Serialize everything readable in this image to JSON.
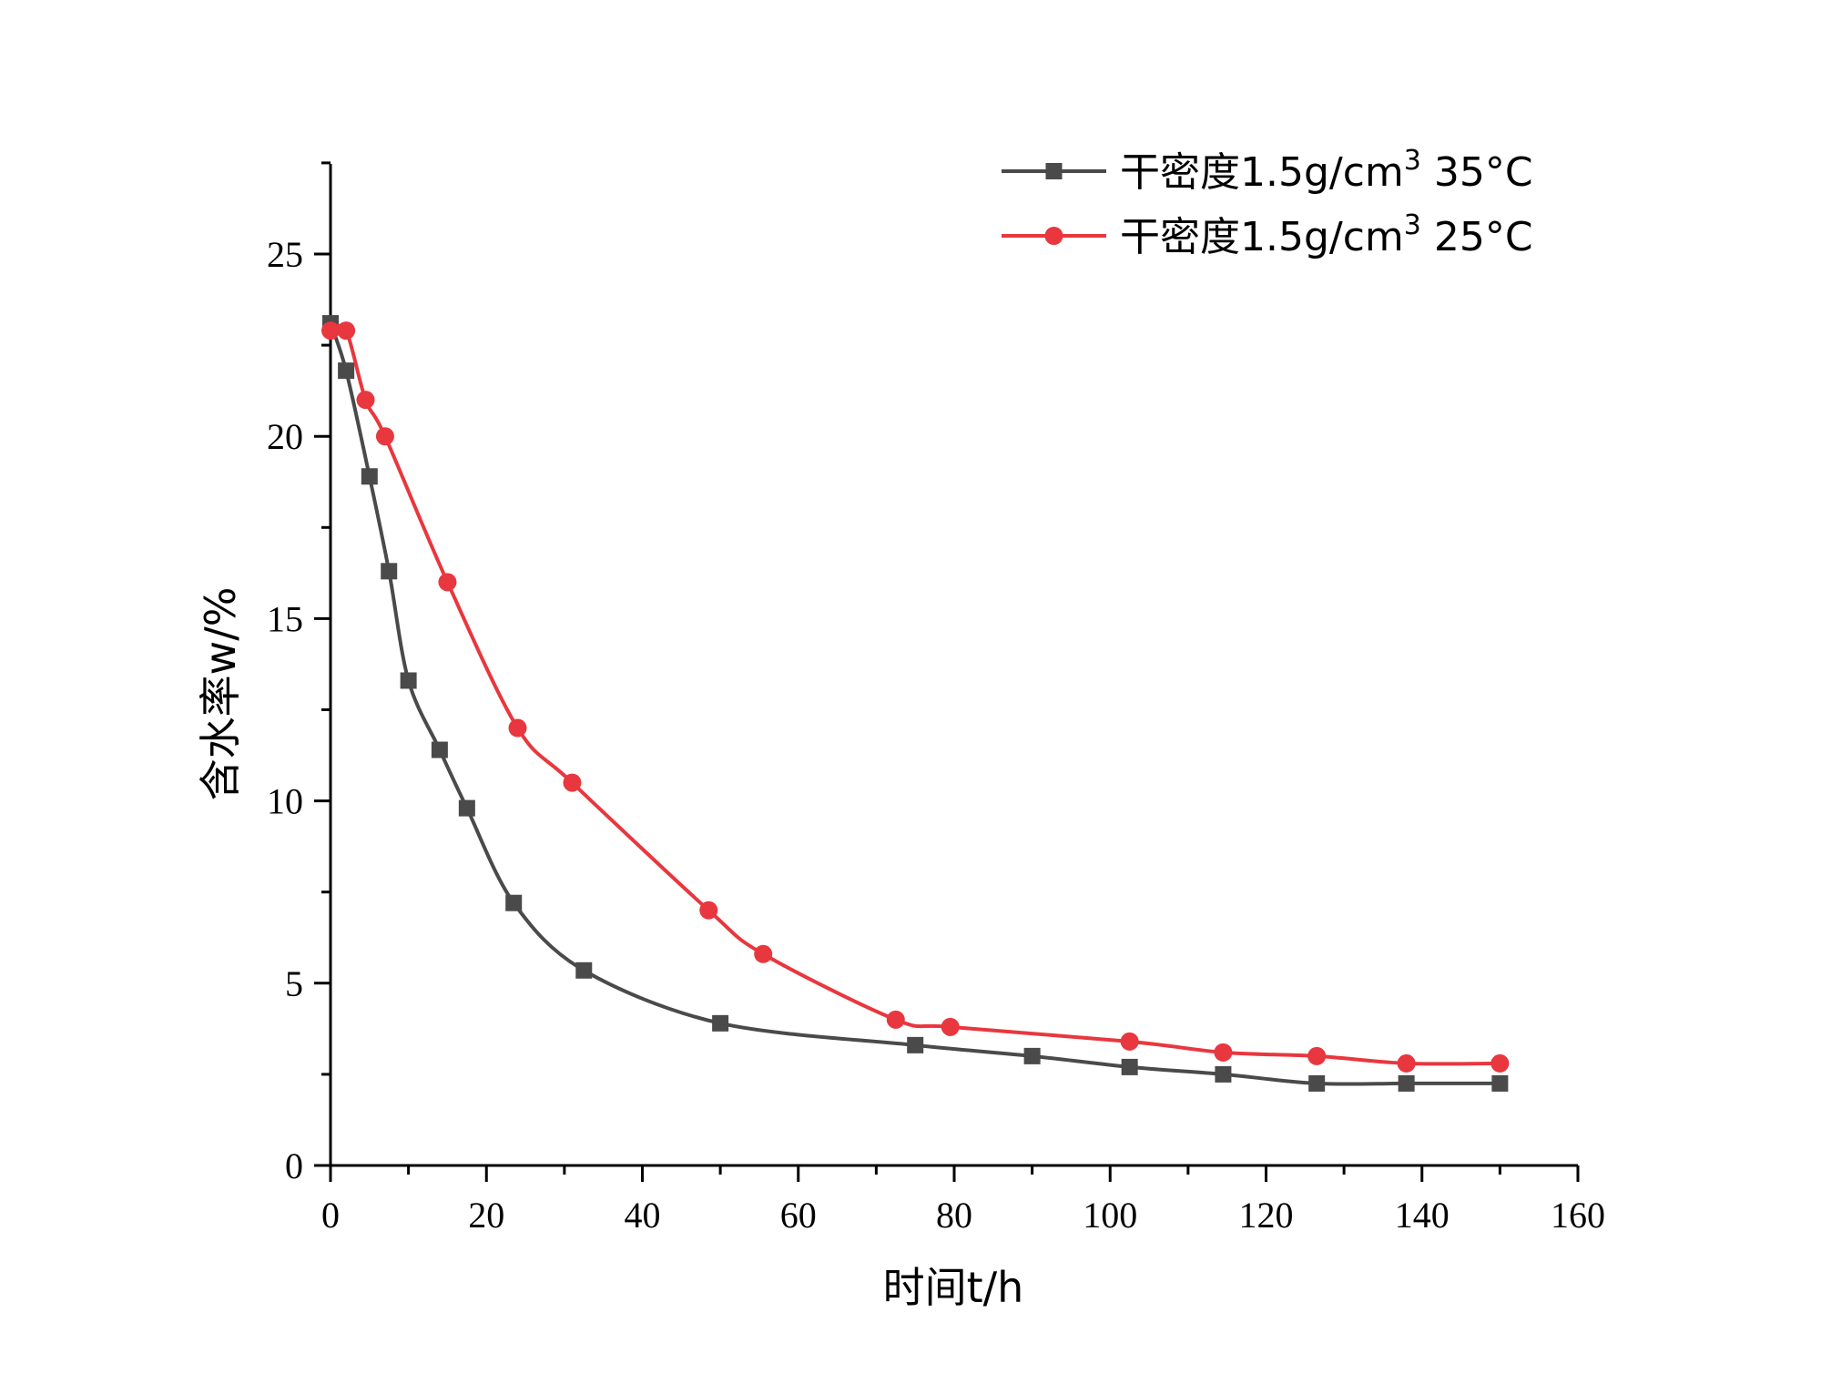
{
  "chart_data": {
    "type": "line",
    "xlabel": "时间t/h",
    "ylabel": "含水率w/%",
    "xlim": [
      0,
      160
    ],
    "ylim": [
      0,
      27.5
    ],
    "xticks": [
      "0",
      "20",
      "40",
      "60",
      "80",
      "100",
      "120",
      "140",
      "160"
    ],
    "yticks": [
      "0",
      "5",
      "10",
      "15",
      "20",
      "25"
    ],
    "legend_position": "top-right",
    "grid": false,
    "series": [
      {
        "name": "干密度1.5g/cm3 35°C",
        "label_parts": {
          "base": "干密度1.5g/cm",
          "sup": "3",
          "tail": " 35°C"
        },
        "color": "#4a4a4a",
        "marker": "square",
        "x": [
          0,
          2,
          5,
          7.5,
          10,
          14,
          17.5,
          23.5,
          32.5,
          50,
          75,
          90,
          102.5,
          114.5,
          126.5,
          138,
          150
        ],
        "y": [
          23.1,
          21.8,
          18.9,
          16.3,
          13.3,
          11.4,
          9.8,
          7.2,
          5.35,
          3.9,
          3.3,
          3.0,
          2.7,
          2.5,
          2.25,
          2.25,
          2.25
        ]
      },
      {
        "name": "干密度1.5g/cm3 25°C",
        "label_parts": {
          "base": "干密度1.5g/cm",
          "sup": "3",
          "tail": " 25°C"
        },
        "color": "#e8373e",
        "marker": "circle",
        "x": [
          0,
          2,
          4.5,
          7,
          15,
          24,
          31,
          48.5,
          55.5,
          72.5,
          79.5,
          102.5,
          114.5,
          126.5,
          138,
          150
        ],
        "y": [
          22.9,
          22.9,
          21.0,
          20.0,
          16.0,
          12.0,
          10.5,
          7.0,
          5.8,
          4.0,
          3.8,
          3.4,
          3.1,
          3.0,
          2.8,
          2.8
        ]
      }
    ]
  }
}
